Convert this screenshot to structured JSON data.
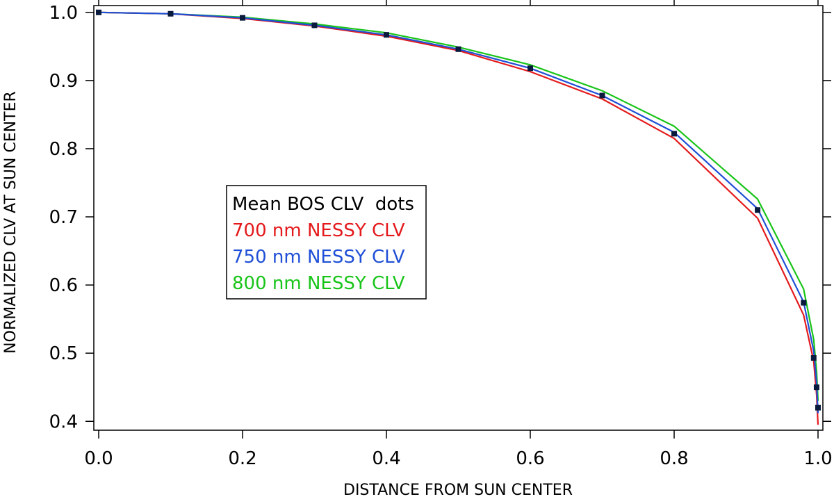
{
  "chart_data": {
    "type": "line",
    "xlabel": "DISTANCE FROM SUN CENTER",
    "ylabel": "NORMALIZED CLV AT SUN CENTER",
    "xlim": [
      0.0,
      1.0
    ],
    "ylim": [
      0.387,
      1.01
    ],
    "xticks": [
      0.0,
      0.2,
      0.4,
      0.6,
      0.8,
      1.0
    ],
    "xtick_labels": [
      "0.0",
      "0.2",
      "0.4",
      "0.6",
      "0.8",
      "1.0"
    ],
    "yticks": [
      0.4,
      0.5,
      0.6,
      0.7,
      0.8,
      0.9,
      1.0
    ],
    "ytick_labels": [
      "0.4",
      "0.5",
      "0.6",
      "0.7",
      "0.8",
      "0.9",
      "1.0"
    ],
    "x": [
      0.0,
      0.1,
      0.2,
      0.3,
      0.4,
      0.5,
      0.6,
      0.7,
      0.8,
      0.916,
      0.98,
      0.994,
      0.998,
      1.0
    ],
    "series": [
      {
        "name": "700 nm NESSY CLV",
        "color": "#e41a1c",
        "values": [
          1.0,
          0.998,
          0.991,
          0.98,
          0.965,
          0.944,
          0.913,
          0.873,
          0.815,
          0.698,
          0.556,
          0.488,
          0.44,
          0.395
        ]
      },
      {
        "name": "750 nm NESSY CLV",
        "color": "#1f4fd6",
        "values": [
          1.0,
          0.998,
          0.992,
          0.981,
          0.967,
          0.946,
          0.918,
          0.878,
          0.824,
          0.712,
          0.575,
          0.503,
          0.457,
          0.412
        ]
      },
      {
        "name": "800 nm NESSY CLV",
        "color": "#19c419",
        "values": [
          1.0,
          0.998,
          0.993,
          0.983,
          0.97,
          0.949,
          0.923,
          0.885,
          0.833,
          0.726,
          0.594,
          0.52,
          0.474,
          0.43
        ]
      }
    ],
    "dots": {
      "name": "Mean BOS CLV",
      "color": "#0a1a3c",
      "x": [
        0.0,
        0.1,
        0.2,
        0.3,
        0.4,
        0.5,
        0.6,
        0.7,
        0.8,
        0.916,
        0.98,
        0.994,
        0.998,
        1.0
      ],
      "values": [
        1.0,
        0.998,
        0.992,
        0.981,
        0.967,
        0.946,
        0.918,
        0.878,
        0.822,
        0.71,
        0.574,
        0.493,
        0.45,
        0.42
      ]
    },
    "legend": {
      "placement": "center-left",
      "entries": [
        {
          "label": "Mean BOS CLV  dots",
          "color": "#000000"
        },
        {
          "label": "700 nm NESSY CLV",
          "color": "#e41a1c"
        },
        {
          "label": "750 nm NESSY CLV",
          "color": "#1f4fd6"
        },
        {
          "label": "800 nm NESSY CLV",
          "color": "#19c419"
        }
      ]
    }
  }
}
